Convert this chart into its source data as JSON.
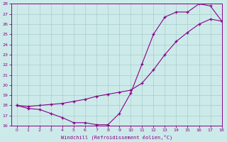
{
  "xlabel": "Windchill (Refroidissement éolien,°C)",
  "line1_x": [
    0,
    1,
    2,
    3,
    4,
    5,
    6,
    7,
    8,
    9,
    10,
    11,
    12,
    13,
    14,
    15,
    16,
    17,
    18
  ],
  "line1_y": [
    18.0,
    17.7,
    17.6,
    17.2,
    16.8,
    16.3,
    16.3,
    16.1,
    16.1,
    17.2,
    19.2,
    22.1,
    25.0,
    26.7,
    27.2,
    27.2,
    28.0,
    27.8,
    26.3
  ],
  "line2_x": [
    0,
    1,
    2,
    3,
    4,
    5,
    6,
    7,
    8,
    9,
    10,
    11,
    12,
    13,
    14,
    15,
    16,
    17,
    18
  ],
  "line2_y": [
    18.0,
    17.9,
    18.0,
    18.1,
    18.2,
    18.4,
    18.6,
    18.9,
    19.1,
    19.3,
    19.5,
    20.2,
    21.5,
    23.0,
    24.3,
    25.2,
    26.0,
    26.5,
    26.3
  ],
  "color": "#880088",
  "bg_color": "#cceaea",
  "grid_color": "#aacccc",
  "ylim": [
    16,
    28
  ],
  "xlim": [
    -0.5,
    18
  ],
  "yticks": [
    16,
    17,
    18,
    19,
    20,
    21,
    22,
    23,
    24,
    25,
    26,
    27,
    28
  ],
  "xticks": [
    0,
    1,
    2,
    3,
    4,
    5,
    6,
    7,
    8,
    9,
    10,
    11,
    12,
    13,
    14,
    15,
    16,
    17,
    18
  ]
}
